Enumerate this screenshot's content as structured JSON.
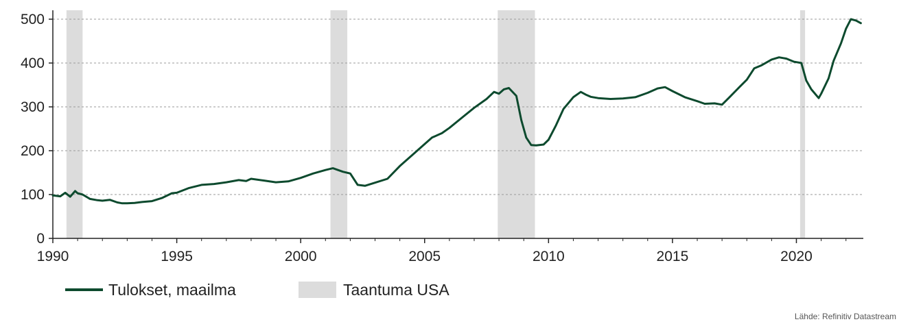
{
  "chart_data": {
    "type": "line",
    "title": "",
    "xlabel": "",
    "ylabel": "",
    "xlim": [
      1990,
      2022.7
    ],
    "ylim": [
      0,
      520
    ],
    "x_ticks": [
      1990,
      1995,
      2000,
      2005,
      2010,
      2015,
      2020
    ],
    "x_tick_labels": [
      "1990",
      "1995",
      "2000",
      "2005",
      "2010",
      "2015",
      "2020"
    ],
    "y_ticks": [
      0,
      100,
      200,
      300,
      400,
      500
    ],
    "y_tick_labels": [
      "0",
      "100",
      "200",
      "300",
      "400",
      "500"
    ],
    "grid": "horizontal dashed",
    "legend_position": "bottom-left",
    "series": [
      {
        "name": "Tulokset, maailma",
        "color": "#0d4a2e",
        "x": [
          1990.0,
          1990.3,
          1990.5,
          1990.7,
          1990.9,
          1991.0,
          1991.2,
          1991.5,
          1991.8,
          1992.0,
          1992.3,
          1992.6,
          1992.8,
          1993.0,
          1993.3,
          1993.6,
          1994.0,
          1994.4,
          1994.8,
          1995.0,
          1995.5,
          1996.0,
          1996.5,
          1997.0,
          1997.5,
          1997.8,
          1998.0,
          1998.5,
          1999.0,
          1999.5,
          2000.0,
          2000.5,
          2001.0,
          2001.3,
          2001.7,
          2002.0,
          2002.3,
          2002.6,
          2003.0,
          2003.5,
          2004.0,
          2004.5,
          2005.0,
          2005.3,
          2005.7,
          2006.0,
          2006.5,
          2007.0,
          2007.5,
          2007.8,
          2008.0,
          2008.2,
          2008.4,
          2008.7,
          2008.9,
          2009.1,
          2009.3,
          2009.5,
          2009.8,
          2010.0,
          2010.3,
          2010.6,
          2011.0,
          2011.3,
          2011.5,
          2011.7,
          2012.0,
          2012.5,
          2013.0,
          2013.5,
          2014.0,
          2014.4,
          2014.7,
          2015.0,
          2015.5,
          2016.0,
          2016.3,
          2016.7,
          2017.0,
          2017.3,
          2017.7,
          2018.0,
          2018.3,
          2018.6,
          2019.0,
          2019.3,
          2019.6,
          2019.9,
          2020.0,
          2020.2,
          2020.4,
          2020.6,
          2020.9,
          2021.0,
          2021.3,
          2021.5,
          2021.8,
          2022.0,
          2022.2,
          2022.4,
          2022.6
        ],
        "y": [
          98,
          96,
          104,
          95,
          108,
          103,
          100,
          90,
          87,
          86,
          88,
          82,
          80,
          80,
          81,
          83,
          85,
          92,
          103,
          104,
          115,
          122,
          124,
          128,
          133,
          131,
          136,
          132,
          128,
          130,
          138,
          148,
          156,
          160,
          152,
          148,
          122,
          120,
          127,
          136,
          165,
          190,
          215,
          230,
          240,
          252,
          275,
          298,
          318,
          334,
          330,
          340,
          343,
          325,
          270,
          230,
          213,
          212,
          214,
          225,
          258,
          295,
          322,
          334,
          328,
          323,
          320,
          318,
          319,
          322,
          332,
          342,
          345,
          336,
          322,
          313,
          307,
          308,
          305,
          322,
          345,
          362,
          388,
          395,
          408,
          413,
          410,
          403,
          402,
          400,
          360,
          340,
          320,
          330,
          365,
          405,
          445,
          478,
          500,
          497,
          491
        ]
      },
      {
        "name": "Taantuma USA",
        "color": "#dcdcdc",
        "type": "shaded-periods",
        "periods": [
          [
            1990.55,
            1991.2
          ],
          [
            2001.2,
            2001.88
          ],
          [
            2007.95,
            2009.45
          ],
          [
            2020.15,
            2020.35
          ]
        ]
      }
    ],
    "source": "Lähde: Refinitiv Datastream"
  }
}
